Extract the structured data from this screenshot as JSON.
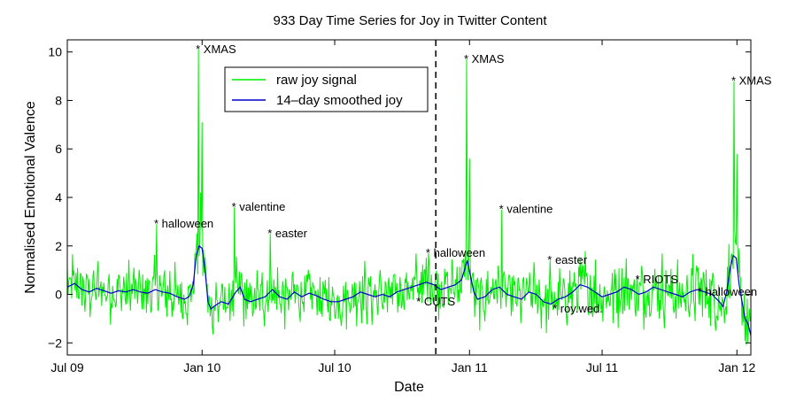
{
  "chart_data": {
    "type": "line",
    "title": "933 Day Time Series for Joy in Twitter Content",
    "xlabel": "Date",
    "ylabel": "Normalised Emotional Valence",
    "xlim": [
      0,
      933
    ],
    "ylim": [
      -2.5,
      10.5
    ],
    "x_ticks": [
      {
        "label": "Jul 09",
        "day": 0
      },
      {
        "label": "Jan 10",
        "day": 184
      },
      {
        "label": "Jul 10",
        "day": 365
      },
      {
        "label": "Jan 11",
        "day": 549
      },
      {
        "label": "Jul 11",
        "day": 730
      },
      {
        "label": "Jan 12",
        "day": 914
      }
    ],
    "y_ticks": [
      -2,
      0,
      2,
      4,
      6,
      8,
      10
    ],
    "legend": {
      "placement": "top-center",
      "entries": [
        "raw joy signal",
        "14–day smoothed joy"
      ]
    },
    "colors": {
      "raw": "#00ee00",
      "smooth": "#0000cc"
    },
    "series": [
      {
        "name": "raw joy signal",
        "style": "noisy-daily",
        "peaks": [
          {
            "day": 122,
            "value": 2.9
          },
          {
            "day": 176,
            "value": 1.9
          },
          {
            "day": 179,
            "value": 10.1
          },
          {
            "day": 182,
            "value": 4.2
          },
          {
            "day": 184,
            "value": 7.1
          },
          {
            "day": 228,
            "value": 3.6
          },
          {
            "day": 277,
            "value": 2.5
          },
          {
            "day": 493,
            "value": 1.7
          },
          {
            "day": 545,
            "value": 9.7
          },
          {
            "day": 549,
            "value": 5.6
          },
          {
            "day": 593,
            "value": 3.5
          },
          {
            "day": 659,
            "value": 1.4
          },
          {
            "day": 910,
            "value": 8.8
          },
          {
            "day": 914,
            "value": 5.8
          }
        ]
      },
      {
        "name": "14–day smoothed joy",
        "points": [
          [
            0,
            0.3
          ],
          [
            10,
            0.45
          ],
          [
            20,
            0.2
          ],
          [
            30,
            0.1
          ],
          [
            40,
            0.25
          ],
          [
            50,
            0.15
          ],
          [
            60,
            0.05
          ],
          [
            70,
            0.15
          ],
          [
            80,
            0.1
          ],
          [
            90,
            0.2
          ],
          [
            100,
            0.1
          ],
          [
            110,
            0.05
          ],
          [
            120,
            0.2
          ],
          [
            130,
            0.1
          ],
          [
            140,
            0.05
          ],
          [
            150,
            -0.1
          ],
          [
            160,
            -0.2
          ],
          [
            166,
            -0.1
          ],
          [
            172,
            0.4
          ],
          [
            176,
            1.6
          ],
          [
            180,
            2.0
          ],
          [
            184,
            1.9
          ],
          [
            188,
            1.0
          ],
          [
            192,
            -0.3
          ],
          [
            196,
            -0.6
          ],
          [
            200,
            -0.5
          ],
          [
            210,
            -0.3
          ],
          [
            220,
            -0.4
          ],
          [
            230,
            0.1
          ],
          [
            236,
            0.3
          ],
          [
            242,
            -0.2
          ],
          [
            250,
            -0.3
          ],
          [
            260,
            -0.2
          ],
          [
            270,
            -0.1
          ],
          [
            280,
            0.2
          ],
          [
            290,
            -0.1
          ],
          [
            300,
            -0.2
          ],
          [
            310,
            0.1
          ],
          [
            320,
            -0.1
          ],
          [
            330,
            0.05
          ],
          [
            340,
            -0.05
          ],
          [
            350,
            -0.2
          ],
          [
            360,
            -0.3
          ],
          [
            370,
            -0.3
          ],
          [
            380,
            -0.2
          ],
          [
            390,
            -0.1
          ],
          [
            400,
            0.1
          ],
          [
            410,
            0.0
          ],
          [
            420,
            -0.1
          ],
          [
            430,
            0.0
          ],
          [
            440,
            -0.1
          ],
          [
            450,
            0.1
          ],
          [
            460,
            0.2
          ],
          [
            470,
            0.3
          ],
          [
            480,
            0.4
          ],
          [
            490,
            0.5
          ],
          [
            500,
            0.4
          ],
          [
            510,
            0.2
          ],
          [
            520,
            0.3
          ],
          [
            530,
            0.4
          ],
          [
            538,
            0.6
          ],
          [
            542,
            1.0
          ],
          [
            546,
            1.4
          ],
          [
            550,
            0.8
          ],
          [
            555,
            0.1
          ],
          [
            560,
            -0.2
          ],
          [
            570,
            -0.1
          ],
          [
            580,
            0.2
          ],
          [
            590,
            0.3
          ],
          [
            600,
            0.0
          ],
          [
            610,
            -0.1
          ],
          [
            620,
            -0.2
          ],
          [
            630,
            0.1
          ],
          [
            640,
            0.0
          ],
          [
            650,
            -0.3
          ],
          [
            660,
            -0.4
          ],
          [
            670,
            -0.2
          ],
          [
            680,
            -0.1
          ],
          [
            690,
            0.1
          ],
          [
            700,
            0.4
          ],
          [
            710,
            0.3
          ],
          [
            720,
            0.1
          ],
          [
            730,
            -0.1
          ],
          [
            740,
            0.0
          ],
          [
            750,
            0.1
          ],
          [
            760,
            0.3
          ],
          [
            770,
            0.2
          ],
          [
            780,
            0.0
          ],
          [
            790,
            0.1
          ],
          [
            800,
            0.3
          ],
          [
            810,
            0.2
          ],
          [
            820,
            0.1
          ],
          [
            830,
            0.0
          ],
          [
            840,
            -0.1
          ],
          [
            850,
            0.1
          ],
          [
            860,
            0.2
          ],
          [
            870,
            0.1
          ],
          [
            880,
            0.0
          ],
          [
            890,
            -0.3
          ],
          [
            895,
            -0.5
          ],
          [
            900,
            0.1
          ],
          [
            905,
            1.1
          ],
          [
            909,
            1.6
          ],
          [
            913,
            1.5
          ],
          [
            917,
            0.4
          ],
          [
            921,
            -0.3
          ],
          [
            925,
            -1.0
          ],
          [
            929,
            -1.2
          ],
          [
            933,
            -1.7
          ]
        ]
      }
    ],
    "annotations": [
      {
        "label": "* halloween",
        "day": 122,
        "value": 2.9
      },
      {
        "label": "* XMAS",
        "day": 179,
        "value": 10.1
      },
      {
        "label": "* valentine",
        "day": 228,
        "value": 3.6
      },
      {
        "label": "* easter",
        "day": 277,
        "value": 2.5
      },
      {
        "label": "* halloween",
        "day": 493,
        "value": 1.7
      },
      {
        "label": "* CUTS",
        "day": 480,
        "value": -0.3
      },
      {
        "label": "* XMAS",
        "day": 545,
        "value": 9.7
      },
      {
        "label": "* valentine",
        "day": 593,
        "value": 3.5
      },
      {
        "label": "* easter",
        "day": 659,
        "value": 1.4
      },
      {
        "label": "* roy.wed.",
        "day": 666,
        "value": -0.6
      },
      {
        "label": "* RIOTS",
        "day": 779,
        "value": 0.6
      },
      {
        "label": "* halloween",
        "day": 864,
        "value": 0.1
      },
      {
        "label": "* XMAS",
        "day": 910,
        "value": 8.8
      }
    ],
    "marker_line": {
      "day": 503,
      "style": "dashed"
    },
    "grid": false
  }
}
